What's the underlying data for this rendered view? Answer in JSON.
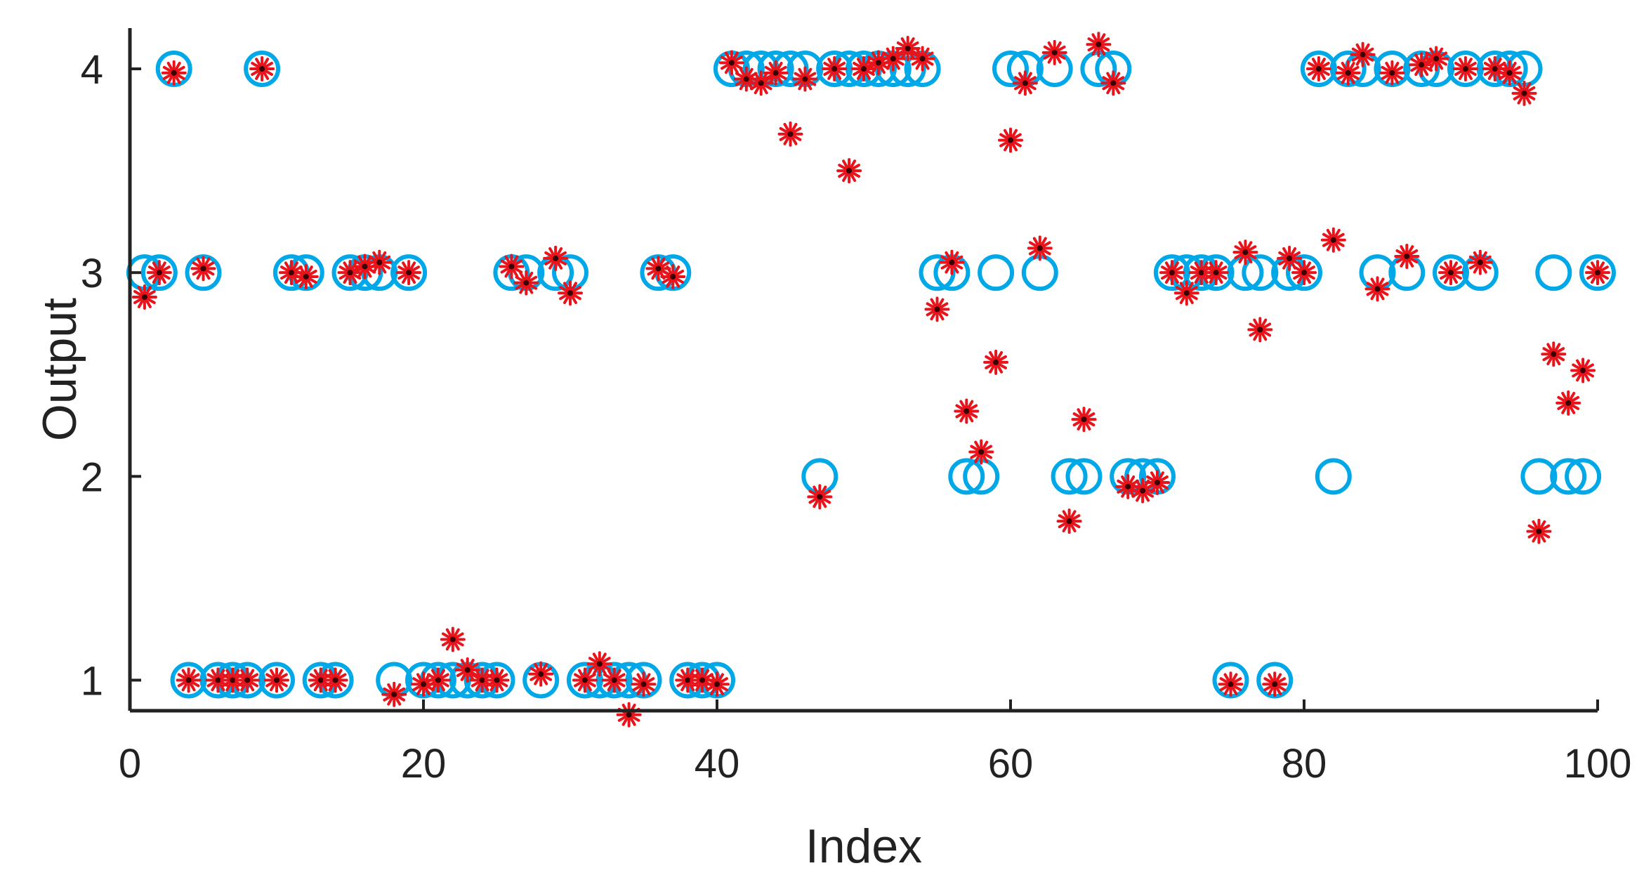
{
  "chart_data": {
    "type": "scatter",
    "title": "",
    "xlabel": "Index",
    "ylabel": "Output",
    "xlim": [
      0,
      100
    ],
    "ylim": [
      0.85,
      4.2
    ],
    "xticks": [
      0,
      20,
      40,
      60,
      80,
      100
    ],
    "yticks": [
      1,
      2,
      3,
      4
    ],
    "grid": false,
    "legend": "none",
    "colors": {
      "actual": "#00a8e8",
      "predicted": "#e8141c",
      "axis": "#222222"
    },
    "series": [
      {
        "marker": "circle",
        "color": "#00a8e8",
        "points": [
          [
            1,
            3
          ],
          [
            2,
            3
          ],
          [
            3,
            4
          ],
          [
            4,
            1
          ],
          [
            5,
            3
          ],
          [
            6,
            1
          ],
          [
            7,
            1
          ],
          [
            8,
            1
          ],
          [
            9,
            4
          ],
          [
            10,
            1
          ],
          [
            11,
            3
          ],
          [
            12,
            3
          ],
          [
            13,
            1
          ],
          [
            14,
            1
          ],
          [
            15,
            3
          ],
          [
            16,
            3
          ],
          [
            17,
            3
          ],
          [
            18,
            1
          ],
          [
            19,
            3
          ],
          [
            20,
            1
          ],
          [
            21,
            1
          ],
          [
            22,
            1
          ],
          [
            23,
            1
          ],
          [
            24,
            1
          ],
          [
            25,
            1
          ],
          [
            26,
            3
          ],
          [
            27,
            3
          ],
          [
            28,
            1
          ],
          [
            29,
            3
          ],
          [
            30,
            3
          ],
          [
            31,
            1
          ],
          [
            32,
            1
          ],
          [
            33,
            1
          ],
          [
            34,
            1
          ],
          [
            35,
            1
          ],
          [
            36,
            3
          ],
          [
            37,
            3
          ],
          [
            38,
            1
          ],
          [
            39,
            1
          ],
          [
            40,
            1
          ],
          [
            41,
            4
          ],
          [
            42,
            4
          ],
          [
            43,
            4
          ],
          [
            44,
            4
          ],
          [
            45,
            4
          ],
          [
            46,
            4
          ],
          [
            47,
            2
          ],
          [
            48,
            4
          ],
          [
            49,
            4
          ],
          [
            50,
            4
          ],
          [
            51,
            4
          ],
          [
            52,
            4
          ],
          [
            53,
            4
          ],
          [
            54,
            4
          ],
          [
            55,
            3
          ],
          [
            56,
            3
          ],
          [
            57,
            2
          ],
          [
            58,
            2
          ],
          [
            59,
            3
          ],
          [
            60,
            4
          ],
          [
            61,
            4
          ],
          [
            62,
            3
          ],
          [
            63,
            4
          ],
          [
            64,
            2
          ],
          [
            65,
            2
          ],
          [
            66,
            4
          ],
          [
            67,
            4
          ],
          [
            68,
            2
          ],
          [
            69,
            2
          ],
          [
            70,
            2
          ],
          [
            71,
            3
          ],
          [
            72,
            3
          ],
          [
            73,
            3
          ],
          [
            74,
            3
          ],
          [
            75,
            1
          ],
          [
            76,
            3
          ],
          [
            77,
            3
          ],
          [
            78,
            1
          ],
          [
            79,
            3
          ],
          [
            80,
            3
          ],
          [
            81,
            4
          ],
          [
            82,
            2
          ],
          [
            83,
            4
          ],
          [
            84,
            4
          ],
          [
            85,
            3
          ],
          [
            86,
            4
          ],
          [
            87,
            3
          ],
          [
            88,
            4
          ],
          [
            89,
            4
          ],
          [
            90,
            3
          ],
          [
            91,
            4
          ],
          [
            92,
            3
          ],
          [
            93,
            4
          ],
          [
            94,
            4
          ],
          [
            95,
            4
          ],
          [
            96,
            2
          ],
          [
            97,
            3
          ],
          [
            98,
            2
          ],
          [
            99,
            2
          ],
          [
            100,
            3
          ]
        ]
      },
      {
        "marker": "asterisk",
        "color": "#e8141c",
        "points": [
          [
            1,
            2.88
          ],
          [
            2,
            3
          ],
          [
            3,
            3.98
          ],
          [
            4,
            1
          ],
          [
            5,
            3.02
          ],
          [
            6,
            1
          ],
          [
            7,
            1
          ],
          [
            8,
            1
          ],
          [
            9,
            4
          ],
          [
            10,
            1
          ],
          [
            11,
            3
          ],
          [
            12,
            2.98
          ],
          [
            13,
            1
          ],
          [
            14,
            1
          ],
          [
            15,
            3
          ],
          [
            16,
            3.03
          ],
          [
            17,
            3.05
          ],
          [
            18,
            0.93
          ],
          [
            19,
            3
          ],
          [
            20,
            0.98
          ],
          [
            21,
            1
          ],
          [
            22,
            1.2
          ],
          [
            23,
            1.05
          ],
          [
            24,
            1
          ],
          [
            25,
            1
          ],
          [
            26,
            3.03
          ],
          [
            27,
            2.95
          ],
          [
            28,
            1.03
          ],
          [
            29,
            3.07
          ],
          [
            30,
            2.9
          ],
          [
            31,
            1
          ],
          [
            32,
            1.08
          ],
          [
            33,
            1
          ],
          [
            34,
            0.83
          ],
          [
            35,
            0.98
          ],
          [
            36,
            3.02
          ],
          [
            37,
            2.98
          ],
          [
            38,
            1
          ],
          [
            39,
            1
          ],
          [
            40,
            0.98
          ],
          [
            41,
            4.03
          ],
          [
            42,
            3.95
          ],
          [
            43,
            3.93
          ],
          [
            44,
            3.98
          ],
          [
            45,
            3.68
          ],
          [
            46,
            3.95
          ],
          [
            47,
            1.9
          ],
          [
            48,
            4
          ],
          [
            49,
            3.5
          ],
          [
            50,
            4
          ],
          [
            51,
            4.03
          ],
          [
            52,
            4.05
          ],
          [
            53,
            4.1
          ],
          [
            54,
            4.05
          ],
          [
            55,
            2.82
          ],
          [
            56,
            3.05
          ],
          [
            57,
            2.32
          ],
          [
            58,
            2.12
          ],
          [
            59,
            2.56
          ],
          [
            60,
            3.65
          ],
          [
            61,
            3.93
          ],
          [
            62,
            3.12
          ],
          [
            63,
            4.08
          ],
          [
            64,
            1.78
          ],
          [
            65,
            2.28
          ],
          [
            66,
            4.12
          ],
          [
            67,
            3.93
          ],
          [
            68,
            1.95
          ],
          [
            69,
            1.93
          ],
          [
            70,
            1.97
          ],
          [
            71,
            3
          ],
          [
            72,
            2.9
          ],
          [
            73,
            3
          ],
          [
            74,
            3
          ],
          [
            75,
            0.98
          ],
          [
            76,
            3.1
          ],
          [
            77,
            2.72
          ],
          [
            78,
            0.98
          ],
          [
            79,
            3.07
          ],
          [
            80,
            3
          ],
          [
            81,
            4
          ],
          [
            82,
            3.16
          ],
          [
            83,
            3.98
          ],
          [
            84,
            4.07
          ],
          [
            85,
            2.92
          ],
          [
            86,
            3.98
          ],
          [
            87,
            3.08
          ],
          [
            88,
            4.02
          ],
          [
            89,
            4.05
          ],
          [
            90,
            3
          ],
          [
            91,
            4
          ],
          [
            92,
            3.05
          ],
          [
            93,
            4
          ],
          [
            94,
            3.98
          ],
          [
            95,
            3.88
          ],
          [
            96,
            1.73
          ],
          [
            97,
            2.6
          ],
          [
            98,
            2.36
          ],
          [
            99,
            2.52
          ],
          [
            100,
            3
          ]
        ]
      }
    ]
  }
}
